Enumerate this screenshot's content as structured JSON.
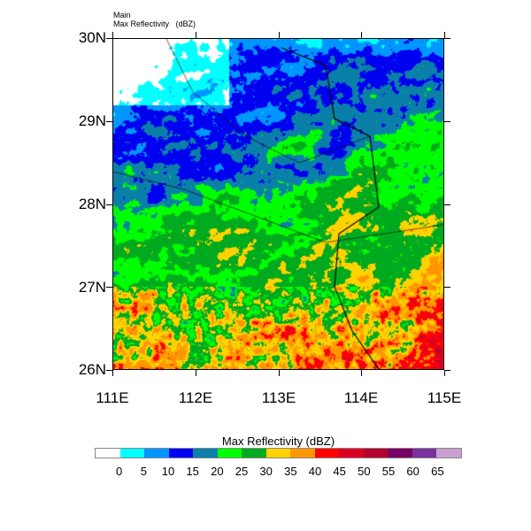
{
  "titles": {
    "left_top": "Main",
    "left_bottom": "Max Reflectivity   (dBZ)"
  },
  "map": {
    "lat_labels": [
      "30N",
      "29N",
      "28N",
      "27N",
      "26N"
    ],
    "lon_labels": [
      "111E",
      "112E",
      "113E",
      "114E",
      "115E"
    ],
    "field": "Max Reflectivity"
  },
  "colorbar": {
    "title": "Max Reflectivity  (dBZ)",
    "labels": [
      "0",
      "5",
      "10",
      "15",
      "20",
      "25",
      "30",
      "35",
      "40",
      "45",
      "50",
      "55",
      "60",
      "65"
    ],
    "colors": [
      "#ffffff",
      "#00ffff",
      "#0096ff",
      "#0000f0",
      "#0a80a8",
      "#00ff00",
      "#00aa1e",
      "#ffd200",
      "#ff9600",
      "#ff0000",
      "#dc0024",
      "#b4002d",
      "#780064",
      "#7832a0",
      "#c8a0d2"
    ]
  }
}
